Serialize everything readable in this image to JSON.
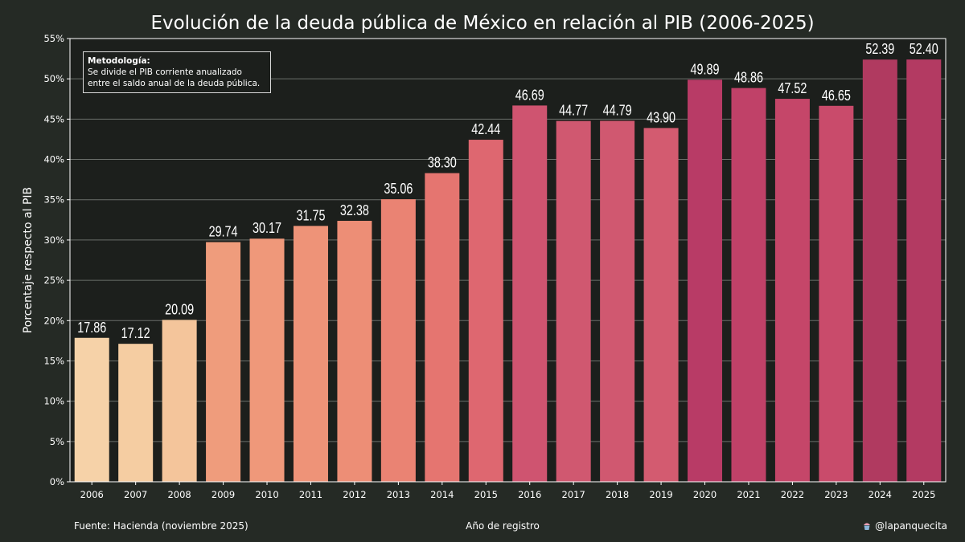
{
  "chart_data": {
    "type": "bar",
    "title": "Evolución de la deuda pública de México en relación al PIB (2006-2025)",
    "xlabel": "Año de registro",
    "ylabel": "Porcentaje respecto al PIB",
    "categories": [
      "2006",
      "2007",
      "2008",
      "2009",
      "2010",
      "2011",
      "2012",
      "2013",
      "2014",
      "2015",
      "2016",
      "2017",
      "2018",
      "2019",
      "2020",
      "2021",
      "2022",
      "2023",
      "2024",
      "2025"
    ],
    "values": [
      17.86,
      17.12,
      20.09,
      29.74,
      30.17,
      31.75,
      32.38,
      35.06,
      38.3,
      42.44,
      46.69,
      44.77,
      44.79,
      43.9,
      49.89,
      48.86,
      47.52,
      46.65,
      52.39,
      52.4
    ],
    "value_labels": [
      "17.86",
      "17.12",
      "20.09",
      "29.74",
      "30.17",
      "31.75",
      "32.38",
      "35.06",
      "38.30",
      "42.44",
      "46.69",
      "44.77",
      "44.79",
      "43.90",
      "49.89",
      "48.86",
      "47.52",
      "46.65",
      "52.39",
      "52.40"
    ],
    "ylim": [
      0,
      55
    ],
    "yticks": [
      0,
      5,
      10,
      15,
      20,
      25,
      30,
      35,
      40,
      45,
      50,
      55
    ],
    "ytick_labels": [
      "0%",
      "5%",
      "10%",
      "15%",
      "20%",
      "25%",
      "30%",
      "35%",
      "40%",
      "45%",
      "50%",
      "55%"
    ],
    "grid": "horizontal",
    "bar_colors": [
      "#f6d2a8",
      "#f5cda2",
      "#f4c59b",
      "#ef9c7c",
      "#ef987a",
      "#ee9378",
      "#ed8e76",
      "#ea8373",
      "#e57570",
      "#de6770",
      "#cf5470",
      "#d05870",
      "#d05870",
      "#d35b70",
      "#b83b66",
      "#c04168",
      "#c54669",
      "#c94b6b",
      "#b03a60",
      "#b33a62"
    ],
    "colors": {
      "background": "#252a25",
      "plot_background": "#1c1f1c",
      "grid": "#6a6f6a",
      "text": "#ffffff"
    }
  },
  "methodology": {
    "title": "Metodología:",
    "lines": [
      "Se divide el PIB corriente anualizado",
      "entre el saldo anual de la deuda pública."
    ]
  },
  "footer": {
    "source": "Fuente: Hacienda (noviembre 2025)",
    "credit": "@lapanquecita",
    "credit_icon": "cupcake-icon"
  }
}
